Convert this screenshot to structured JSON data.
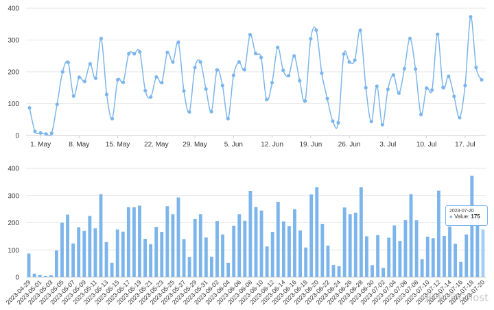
{
  "chart_data": [
    {
      "type": "line",
      "ylim": [
        0,
        400
      ],
      "yticks": [
        "0",
        "100",
        "200",
        "300",
        "400"
      ],
      "xticks": [
        {
          "label": "1. May",
          "date": "2023-05-01"
        },
        {
          "label": "8. May",
          "date": "2023-05-08"
        },
        {
          "label": "15. May",
          "date": "2023-05-15"
        },
        {
          "label": "22. May",
          "date": "2023-05-22"
        },
        {
          "label": "29. May",
          "date": "2023-05-29"
        },
        {
          "label": "5. Jun",
          "date": "2023-06-05"
        },
        {
          "label": "12. Jun",
          "date": "2023-06-12"
        },
        {
          "label": "19. Jun",
          "date": "2023-06-19"
        },
        {
          "label": "26. Jun",
          "date": "2023-06-26"
        },
        {
          "label": "3. Jul",
          "date": "2023-07-03"
        },
        {
          "label": "10. Jul",
          "date": "2023-07-10"
        },
        {
          "label": "17. Jul",
          "date": "2023-07-17"
        }
      ],
      "x": [
        "2023-04-29",
        "2023-04-30",
        "2023-05-01",
        "2023-05-02",
        "2023-05-03",
        "2023-05-04",
        "2023-05-05",
        "2023-05-06",
        "2023-05-07",
        "2023-05-08",
        "2023-05-09",
        "2023-05-10",
        "2023-05-11",
        "2023-05-12",
        "2023-05-13",
        "2023-05-14",
        "2023-05-15",
        "2023-05-16",
        "2023-05-17",
        "2023-05-18",
        "2023-05-19",
        "2023-05-20",
        "2023-05-21",
        "2023-05-22",
        "2023-05-23",
        "2023-05-24",
        "2023-05-25",
        "2023-05-26",
        "2023-05-27",
        "2023-05-28",
        "2023-05-29",
        "2023-05-30",
        "2023-05-31",
        "2023-06-01",
        "2023-06-02",
        "2023-06-03",
        "2023-06-04",
        "2023-06-05",
        "2023-06-06",
        "2023-06-07",
        "2023-06-08",
        "2023-06-09",
        "2023-06-10",
        "2023-06-11",
        "2023-06-12",
        "2023-06-13",
        "2023-06-14",
        "2023-06-15",
        "2023-06-16",
        "2023-06-17",
        "2023-06-18",
        "2023-06-19",
        "2023-06-20",
        "2023-06-21",
        "2023-06-22",
        "2023-06-23",
        "2023-06-24",
        "2023-06-25",
        "2023-06-26",
        "2023-06-27",
        "2023-06-28",
        "2023-06-29",
        "2023-06-30",
        "2023-07-01",
        "2023-07-02",
        "2023-07-03",
        "2023-07-04",
        "2023-07-05",
        "2023-07-06",
        "2023-07-07",
        "2023-07-08",
        "2023-07-09",
        "2023-07-10",
        "2023-07-11",
        "2023-07-12",
        "2023-07-13",
        "2023-07-14",
        "2023-07-15",
        "2023-07-16",
        "2023-07-17",
        "2023-07-18",
        "2023-07-19",
        "2023-07-20"
      ],
      "series": [
        {
          "values": [
            87,
            13,
            8,
            5,
            7,
            98,
            200,
            230,
            124,
            183,
            170,
            225,
            180,
            305,
            129,
            53,
            175,
            167,
            257,
            257,
            263,
            141,
            121,
            184,
            166,
            261,
            231,
            293,
            140,
            74,
            214,
            231,
            146,
            75,
            206,
            157,
            53,
            189,
            231,
            207,
            317,
            258,
            245,
            113,
            166,
            277,
            205,
            188,
            250,
            172,
            109,
            304,
            331,
            196,
            116,
            45,
            40,
            256,
            231,
            237,
            331,
            150,
            44,
            155,
            34,
            145,
            190,
            133,
            210,
            305,
            209,
            66,
            149,
            143,
            318,
            151,
            186,
            123,
            56,
            157,
            373,
            214,
            175
          ]
        }
      ],
      "color": "#7cb5ec"
    },
    {
      "type": "bar",
      "ylim": [
        0,
        400
      ],
      "yticks": [
        "0",
        "100",
        "200",
        "300",
        "400"
      ],
      "categories": [
        "2023-04-29",
        "2023-05-01",
        "2023-05-03",
        "2023-05-05",
        "2023-05-07",
        "2023-05-09",
        "2023-05-11",
        "2023-05-13",
        "2023-05-15",
        "2023-05-17",
        "2023-05-19",
        "2023-05-21",
        "2023-05-23",
        "2023-05-25",
        "2023-05-27",
        "2023-05-29",
        "2023-05-31",
        "2023-06-02",
        "2023-06-04",
        "2023-06-06",
        "2023-06-08",
        "2023-06-10",
        "2023-06-12",
        "2023-06-14",
        "2023-06-16",
        "2023-06-18",
        "2023-06-20",
        "2023-06-22",
        "2023-06-24",
        "2023-06-26",
        "2023-06-28",
        "2023-06-30",
        "2023-07-02",
        "2023-07-04",
        "2023-07-06",
        "2023-07-08",
        "2023-07-10",
        "2023-07-12",
        "2023-07-14",
        "2023-07-16",
        "2023-07-18",
        "2023-07-20"
      ],
      "color": "#7cb5ec",
      "tooltip": {
        "date": "2023-07-20",
        "series_label": "Value",
        "value": "175"
      }
    }
  ],
  "watermark": "知乎 @Ghost"
}
